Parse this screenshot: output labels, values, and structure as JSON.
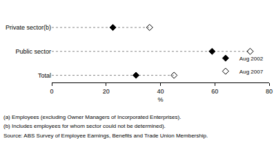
{
  "chart_data": {
    "type": "dot",
    "orientation": "horizontal",
    "categories": [
      "Private sector(b)",
      "Public sector",
      "Total"
    ],
    "series": [
      {
        "name": "Aug 2002",
        "color": "#000000",
        "marker": "diamond",
        "values": [
          22.5,
          59,
          31
        ]
      },
      {
        "name": "Aug 2007",
        "color": "#000000",
        "marker": "diamond-open",
        "values": [
          36,
          73,
          45
        ]
      }
    ],
    "x_label": "%",
    "xlim": [
      0,
      80
    ],
    "xticks": [
      0,
      20,
      40,
      60,
      80
    ],
    "grid": false,
    "legend": "bottom right",
    "footnotes": [
      "(a) Employees (excluding Owner Managers of Incorporated Enterprises).",
      "(b) Includes employees for whom sector could not be determined).",
      "Source: ABS Survey of Employee Earnings, Benefits and Trade Union Membership."
    ]
  }
}
